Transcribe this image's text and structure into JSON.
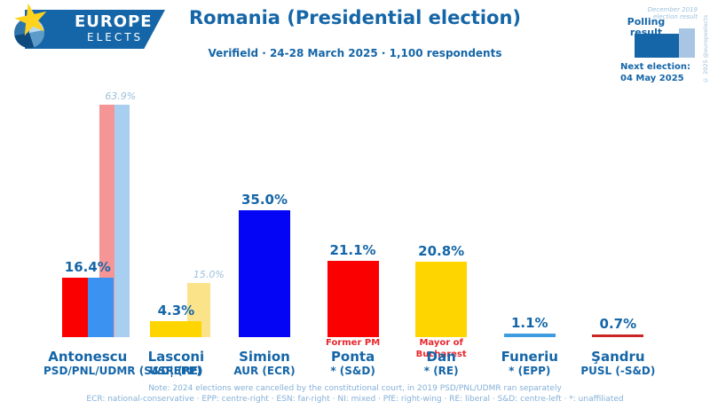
{
  "brand": {
    "line1": "EUROPE",
    "line2": "ELECTS"
  },
  "header": {
    "title": "Romania (Presidential election)",
    "subtitle": "Verifield · 24-28 March 2025 · 1,100 respondents"
  },
  "legend": {
    "polling_label": "Polling result",
    "previous_label": "December 2019 election result",
    "next_election_line1": "Next election:",
    "next_election_line2": "04 May 2025",
    "copyright": "© 2025 @europeelects"
  },
  "footer": {
    "note": "Note: 2024 elections were cancelled by the constitutional court, in 2019 PSD/PNL/UDMR ran separately",
    "abbreviations": "ECR: national-conservative · EPP: centre-right · ESN: far-right · NI: mixed · PfE: right-wing · RE: liberal · S&D: centre-left · *: unaffiliated"
  },
  "colors": {
    "accent_blue": "#1566a8",
    "faded_label_blue": "#9cc0dc",
    "note_red": "#e8272e",
    "footer_blue": "#85b0d8",
    "legend_pale_bar": "#a8c6e4"
  },
  "chart_data": {
    "type": "bar",
    "unit": "%",
    "title": "Romania (Presidential election)",
    "subtitle": "Verifield · 24-28 March 2025 · 1,100 respondents",
    "ylim": [
      0,
      70
    ],
    "grid": false,
    "legend_position": "top-right",
    "categories": [
      "Antonescu",
      "Lasconi",
      "Simion",
      "Ponta",
      "Dan",
      "Funeriu",
      "Şandru"
    ],
    "series": [
      {
        "name": "Polling result",
        "values": [
          16.4,
          4.3,
          35.0,
          21.1,
          20.8,
          1.1,
          0.7
        ]
      },
      {
        "name": "December 2019 election result",
        "values": [
          63.9,
          15.0,
          null,
          null,
          null,
          null,
          null
        ]
      }
    ],
    "candidates": [
      {
        "name": "Antonescu",
        "party": "PSD/PNL/UDMR (S&D|EPP)",
        "note": "",
        "polling_value": 16.4,
        "polling_label": "16.4%",
        "polling_colors": [
          "#fa0000",
          "#3b92f0"
        ],
        "previous_value": 63.9,
        "previous_label": "63.9%",
        "previous_colors": [
          "#f59595",
          "#a8cff0"
        ]
      },
      {
        "name": "Lasconi",
        "party": "USR (RE)",
        "note": "",
        "polling_value": 4.3,
        "polling_label": "4.3%",
        "polling_colors": [
          "#ffd500"
        ],
        "previous_value": 15.0,
        "previous_label": "15.0%",
        "previous_colors": [
          "#fbe38a"
        ]
      },
      {
        "name": "Simion",
        "party": "AUR (ECR)",
        "note": "",
        "polling_value": 35.0,
        "polling_label": "35.0%",
        "polling_colors": [
          "#0505f5"
        ],
        "previous_value": null,
        "previous_label": "",
        "previous_colors": []
      },
      {
        "name": "Ponta",
        "party": "* (S&D)",
        "note": "Former PM",
        "polling_value": 21.1,
        "polling_label": "21.1%",
        "polling_colors": [
          "#fa0000"
        ],
        "previous_value": null,
        "previous_label": "",
        "previous_colors": []
      },
      {
        "name": "Dan",
        "party": "* (RE)",
        "note": "Mayor of Bucharest",
        "polling_value": 20.8,
        "polling_label": "20.8%",
        "polling_colors": [
          "#ffd500"
        ],
        "previous_value": null,
        "previous_label": "",
        "previous_colors": []
      },
      {
        "name": "Funeriu",
        "party": "* (EPP)",
        "note": "",
        "polling_value": 1.1,
        "polling_label": "1.1%",
        "polling_colors": [
          "#3d9be0"
        ],
        "previous_value": null,
        "previous_label": "",
        "previous_colors": []
      },
      {
        "name": "Şandru",
        "party": "PUSL (-S&D)",
        "note": "",
        "polling_value": 0.7,
        "polling_label": "0.7%",
        "polling_colors": [
          "#cc2525"
        ],
        "previous_value": null,
        "previous_label": "",
        "previous_colors": []
      }
    ]
  }
}
